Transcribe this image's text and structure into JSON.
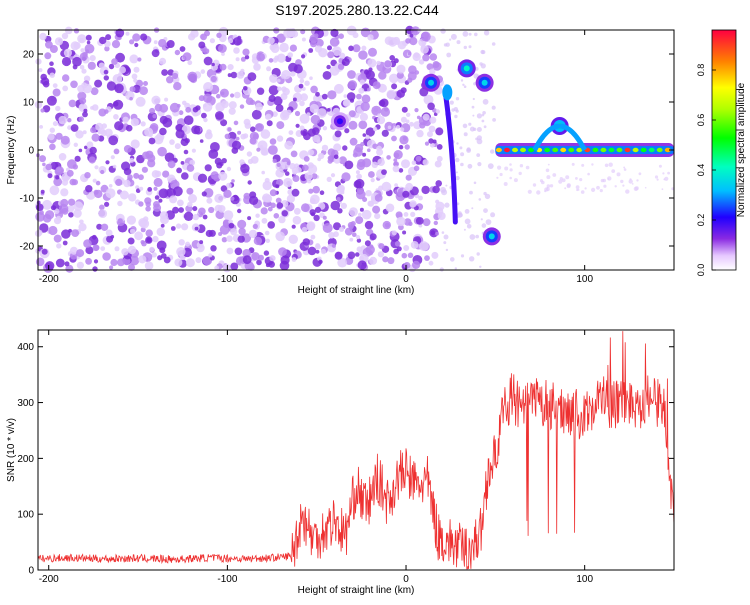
{
  "title": "S197.2025.280.13.22.C44",
  "chart_data": [
    {
      "type": "heatmap",
      "xlabel": "Height of straight line (km)",
      "ylabel": "Frequency (Hz)",
      "xlim": [
        -206,
        150
      ],
      "ylim": [
        -25,
        25
      ],
      "xticks": [
        -200,
        -100,
        0,
        100
      ],
      "yticks": [
        -20,
        -10,
        0,
        10,
        20
      ],
      "colorbar": {
        "label": "Normalized spectral amplitude",
        "range": [
          0,
          0.96
        ],
        "ticks": [
          0,
          0.2,
          0.4,
          0.6,
          0.8
        ]
      },
      "features": [
        {
          "name": "noise-region",
          "x_range": [
            -206,
            20
          ],
          "amplitude": 0.05
        },
        {
          "name": "blob",
          "x": -37,
          "y": 6,
          "amplitude": 0.2
        },
        {
          "name": "blob",
          "x": 14,
          "y": 14,
          "amplitude": 0.35
        },
        {
          "name": "streak",
          "x_range": [
            22,
            25
          ],
          "y": 12,
          "amplitude": 0.3
        },
        {
          "name": "blob",
          "x": 34,
          "y": 17,
          "amplitude": 0.4
        },
        {
          "name": "blob",
          "x": 44,
          "y": 14,
          "amplitude": 0.35
        },
        {
          "name": "blob",
          "x": 48,
          "y": -18,
          "amplitude": 0.35
        },
        {
          "name": "ridge",
          "x_range": [
            50,
            150
          ],
          "y": 0,
          "amplitude": 0.9
        },
        {
          "name": "bump",
          "x": 86,
          "y": 5,
          "amplitude": 0.45
        }
      ]
    },
    {
      "type": "line",
      "xlabel": "Height of straight line (km)",
      "ylabel": "SNR (10 * v/v)",
      "xlim": [
        -206,
        150
      ],
      "ylim": [
        0,
        430
      ],
      "xticks": [
        -200,
        -100,
        0,
        100
      ],
      "yticks": [
        0,
        100,
        200,
        300,
        400
      ],
      "series": [
        {
          "name": "SNR",
          "color": "#ee3030",
          "x": [
            -206,
            -190,
            -170,
            -150,
            -130,
            -110,
            -90,
            -75,
            -64,
            -58,
            -52,
            -46,
            -40,
            -34,
            -28,
            -22,
            -16,
            -10,
            -4,
            0,
            6,
            12,
            18,
            24,
            30,
            36,
            42,
            46,
            50,
            55,
            60,
            65,
            70,
            75,
            80,
            85,
            90,
            95,
            100,
            105,
            110,
            115,
            120,
            125,
            130,
            135,
            140,
            145,
            150
          ],
          "y": [
            20,
            22,
            20,
            21,
            19,
            22,
            20,
            22,
            25,
            100,
            55,
            70,
            90,
            60,
            150,
            110,
            165,
            120,
            170,
            175,
            150,
            160,
            60,
            50,
            40,
            35,
            70,
            180,
            200,
            300,
            310,
            280,
            305,
            295,
            300,
            285,
            290,
            280,
            270,
            300,
            310,
            290,
            305,
            300,
            295,
            310,
            300,
            290,
            80
          ]
        }
      ]
    }
  ]
}
